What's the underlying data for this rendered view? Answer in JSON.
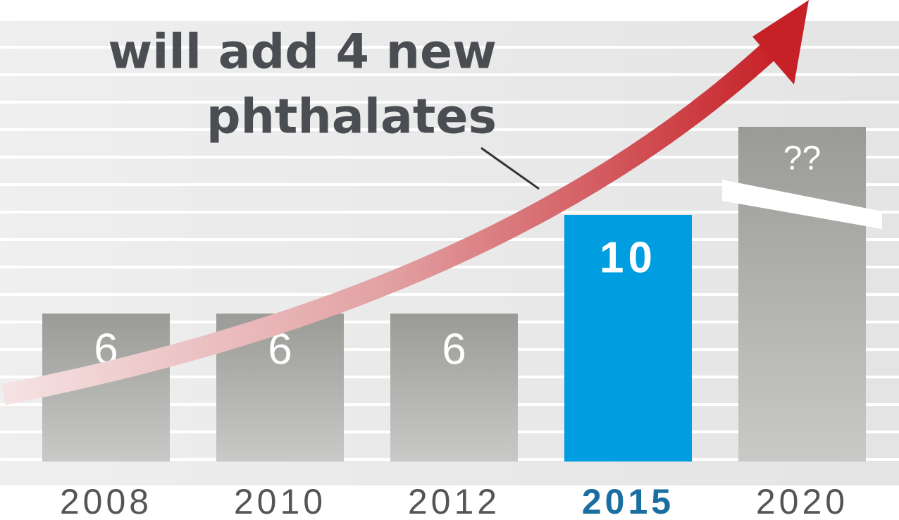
{
  "chart_data": {
    "type": "bar",
    "title": [
      "will add 4 new",
      "phthalates"
    ],
    "categories": [
      "2008",
      "2010",
      "2012",
      "2015",
      "2020"
    ],
    "values": [
      6,
      6,
      6,
      10,
      null
    ],
    "value_labels": [
      "6",
      "6",
      "6",
      "10",
      "??"
    ],
    "color": "#9b9c98",
    "highlight": {
      "index": 3,
      "color": "#009ee0",
      "label_color": "#1a6fa0"
    }
  }
}
